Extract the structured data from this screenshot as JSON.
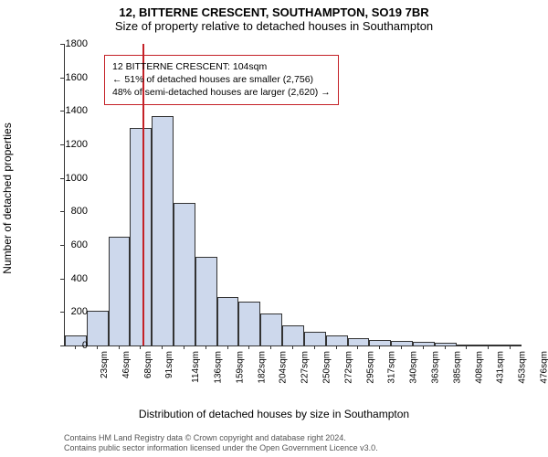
{
  "title_line1": "12, BITTERNE CRESCENT, SOUTHAMPTON, SO19 7BR",
  "title_line2": "Size of property relative to detached houses in Southampton",
  "y_axis_title": "Number of detached properties",
  "x_axis_title": "Distribution of detached houses by size in Southampton",
  "annotation": {
    "line1": "12 BITTERNE CRESCENT: 104sqm",
    "line2": "← 51% of detached houses are smaller (2,756)",
    "line3": "48% of semi-detached houses are larger (2,620) →",
    "border_color": "#c42127"
  },
  "footer_line1": "Contains HM Land Registry data © Crown copyright and database right 2024.",
  "footer_line2": "Contains public sector information licensed under the Open Government Licence v3.0.",
  "chart": {
    "type": "histogram",
    "y_ticks": [
      0,
      200,
      400,
      600,
      800,
      1000,
      1200,
      1400,
      1600,
      1800
    ],
    "y_max": 1800,
    "bar_fill": "#cdd8ec",
    "bar_stroke": "#333333",
    "background": "#ffffff",
    "x_labels": [
      "23sqm",
      "46sqm",
      "68sqm",
      "91sqm",
      "114sqm",
      "136sqm",
      "159sqm",
      "182sqm",
      "204sqm",
      "227sqm",
      "250sqm",
      "272sqm",
      "295sqm",
      "317sqm",
      "340sqm",
      "363sqm",
      "385sqm",
      "408sqm",
      "431sqm",
      "453sqm",
      "476sqm"
    ],
    "values": [
      60,
      210,
      650,
      1300,
      1370,
      850,
      530,
      290,
      260,
      190,
      120,
      80,
      60,
      45,
      35,
      30,
      20,
      15,
      5,
      3,
      2
    ],
    "marker": {
      "index_position": 3.6,
      "color": "#c42127"
    }
  }
}
